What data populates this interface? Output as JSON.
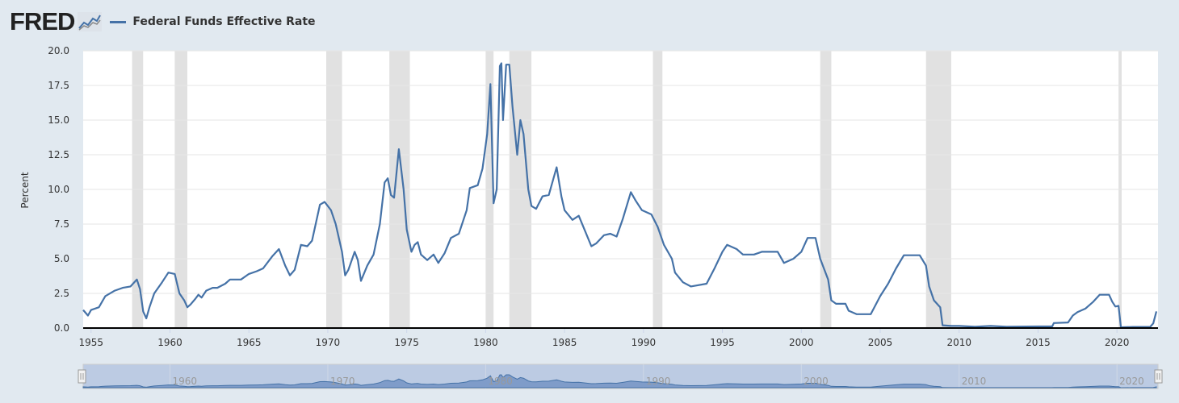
{
  "header": {
    "logo": "FRED",
    "logo_icon": "chart-line-icon"
  },
  "chart_data": {
    "type": "line",
    "title": "",
    "legend": [
      {
        "label": "Federal Funds Effective Rate",
        "color": "#4572a7"
      }
    ],
    "legend_placement": "top-left",
    "xlabel": "",
    "ylabel": "Percent",
    "xlim": [
      1954.5,
      2022.6
    ],
    "ylim": [
      0,
      20
    ],
    "yticks": [
      "0.0",
      "2.5",
      "5.0",
      "7.5",
      "10.0",
      "12.5",
      "15.0",
      "17.5",
      "20.0"
    ],
    "xticks": [
      "1955",
      "1960",
      "1965",
      "1970",
      "1975",
      "1980",
      "1985",
      "1990",
      "1995",
      "2000",
      "2005",
      "2010",
      "2015",
      "2020"
    ],
    "navigator_labels": [
      "1960",
      "1970",
      "1980",
      "1990",
      "2000",
      "2010",
      "2020"
    ],
    "recessions": [
      [
        1957.6,
        1958.3
      ],
      [
        1960.3,
        1961.1
      ],
      [
        1969.9,
        1970.9
      ],
      [
        1973.9,
        1975.2
      ],
      [
        1980.0,
        1980.5
      ],
      [
        1981.5,
        1982.9
      ],
      [
        1990.6,
        1991.2
      ],
      [
        2001.2,
        2001.9
      ],
      [
        2007.9,
        2009.5
      ],
      [
        2020.1,
        2020.3
      ]
    ],
    "series": [
      {
        "name": "Federal Funds Effective Rate",
        "color": "#4572a7",
        "points": [
          [
            1954.5,
            1.3
          ],
          [
            1954.8,
            0.9
          ],
          [
            1955.0,
            1.3
          ],
          [
            1955.5,
            1.5
          ],
          [
            1955.9,
            2.3
          ],
          [
            1956.5,
            2.7
          ],
          [
            1957.0,
            2.9
          ],
          [
            1957.5,
            3.0
          ],
          [
            1957.9,
            3.5
          ],
          [
            1958.1,
            2.8
          ],
          [
            1958.3,
            1.2
          ],
          [
            1958.5,
            0.7
          ],
          [
            1958.7,
            1.5
          ],
          [
            1959.0,
            2.5
          ],
          [
            1959.5,
            3.3
          ],
          [
            1959.9,
            4.0
          ],
          [
            1960.3,
            3.9
          ],
          [
            1960.6,
            2.5
          ],
          [
            1960.9,
            2.0
          ],
          [
            1961.1,
            1.5
          ],
          [
            1961.3,
            1.7
          ],
          [
            1961.6,
            2.1
          ],
          [
            1961.8,
            2.4
          ],
          [
            1962.0,
            2.2
          ],
          [
            1962.3,
            2.7
          ],
          [
            1962.7,
            2.9
          ],
          [
            1963.0,
            2.9
          ],
          [
            1963.5,
            3.2
          ],
          [
            1963.8,
            3.5
          ],
          [
            1964.5,
            3.5
          ],
          [
            1965.0,
            3.9
          ],
          [
            1965.5,
            4.1
          ],
          [
            1965.9,
            4.3
          ],
          [
            1966.5,
            5.2
          ],
          [
            1966.9,
            5.7
          ],
          [
            1967.3,
            4.5
          ],
          [
            1967.6,
            3.8
          ],
          [
            1967.9,
            4.2
          ],
          [
            1968.3,
            6.0
          ],
          [
            1968.7,
            5.9
          ],
          [
            1969.0,
            6.3
          ],
          [
            1969.5,
            8.9
          ],
          [
            1969.8,
            9.1
          ],
          [
            1970.2,
            8.5
          ],
          [
            1970.5,
            7.5
          ],
          [
            1970.9,
            5.5
          ],
          [
            1971.1,
            3.8
          ],
          [
            1971.3,
            4.2
          ],
          [
            1971.7,
            5.5
          ],
          [
            1971.9,
            4.9
          ],
          [
            1972.1,
            3.4
          ],
          [
            1972.5,
            4.5
          ],
          [
            1972.9,
            5.3
          ],
          [
            1973.3,
            7.5
          ],
          [
            1973.6,
            10.5
          ],
          [
            1973.8,
            10.8
          ],
          [
            1974.0,
            9.6
          ],
          [
            1974.2,
            9.4
          ],
          [
            1974.5,
            12.9
          ],
          [
            1974.8,
            10.0
          ],
          [
            1975.0,
            7.1
          ],
          [
            1975.3,
            5.5
          ],
          [
            1975.5,
            6.0
          ],
          [
            1975.7,
            6.2
          ],
          [
            1975.9,
            5.3
          ],
          [
            1976.3,
            4.9
          ],
          [
            1976.7,
            5.3
          ],
          [
            1977.0,
            4.7
          ],
          [
            1977.4,
            5.4
          ],
          [
            1977.8,
            6.5
          ],
          [
            1978.3,
            6.8
          ],
          [
            1978.8,
            8.5
          ],
          [
            1979.0,
            10.1
          ],
          [
            1979.5,
            10.3
          ],
          [
            1979.8,
            11.5
          ],
          [
            1980.1,
            14.0
          ],
          [
            1980.3,
            17.6
          ],
          [
            1980.5,
            9.0
          ],
          [
            1980.7,
            10.0
          ],
          [
            1980.9,
            18.9
          ],
          [
            1981.0,
            19.1
          ],
          [
            1981.1,
            15.0
          ],
          [
            1981.3,
            19.0
          ],
          [
            1981.5,
            19.0
          ],
          [
            1981.7,
            16.0
          ],
          [
            1982.0,
            12.5
          ],
          [
            1982.2,
            15.0
          ],
          [
            1982.4,
            14.0
          ],
          [
            1982.7,
            10.0
          ],
          [
            1982.9,
            8.8
          ],
          [
            1983.2,
            8.6
          ],
          [
            1983.6,
            9.5
          ],
          [
            1984.0,
            9.6
          ],
          [
            1984.5,
            11.6
          ],
          [
            1984.8,
            9.5
          ],
          [
            1985.0,
            8.5
          ],
          [
            1985.5,
            7.8
          ],
          [
            1985.9,
            8.1
          ],
          [
            1986.3,
            7.0
          ],
          [
            1986.7,
            5.9
          ],
          [
            1987.0,
            6.1
          ],
          [
            1987.5,
            6.7
          ],
          [
            1987.9,
            6.8
          ],
          [
            1988.3,
            6.6
          ],
          [
            1988.7,
            7.9
          ],
          [
            1989.2,
            9.8
          ],
          [
            1989.5,
            9.2
          ],
          [
            1989.9,
            8.5
          ],
          [
            1990.5,
            8.2
          ],
          [
            1990.9,
            7.3
          ],
          [
            1991.3,
            6.0
          ],
          [
            1991.8,
            5.0
          ],
          [
            1992.0,
            4.0
          ],
          [
            1992.5,
            3.3
          ],
          [
            1993.0,
            3.0
          ],
          [
            1994.0,
            3.2
          ],
          [
            1994.5,
            4.3
          ],
          [
            1995.0,
            5.5
          ],
          [
            1995.3,
            6.0
          ],
          [
            1995.9,
            5.7
          ],
          [
            1996.3,
            5.3
          ],
          [
            1997.0,
            5.3
          ],
          [
            1997.5,
            5.5
          ],
          [
            1998.5,
            5.5
          ],
          [
            1998.9,
            4.7
          ],
          [
            1999.5,
            5.0
          ],
          [
            2000.0,
            5.5
          ],
          [
            2000.4,
            6.5
          ],
          [
            2000.9,
            6.5
          ],
          [
            2001.2,
            5.0
          ],
          [
            2001.7,
            3.5
          ],
          [
            2001.9,
            2.0
          ],
          [
            2002.2,
            1.75
          ],
          [
            2002.8,
            1.75
          ],
          [
            2003.0,
            1.25
          ],
          [
            2003.5,
            1.0
          ],
          [
            2004.4,
            1.0
          ],
          [
            2005.0,
            2.3
          ],
          [
            2005.5,
            3.2
          ],
          [
            2006.0,
            4.3
          ],
          [
            2006.5,
            5.25
          ],
          [
            2007.5,
            5.25
          ],
          [
            2007.9,
            4.5
          ],
          [
            2008.1,
            3.0
          ],
          [
            2008.4,
            2.0
          ],
          [
            2008.8,
            1.5
          ],
          [
            2008.95,
            0.2
          ],
          [
            2009.5,
            0.15
          ],
          [
            2010.0,
            0.15
          ],
          [
            2011.0,
            0.1
          ],
          [
            2012.0,
            0.15
          ],
          [
            2013.0,
            0.1
          ],
          [
            2015.9,
            0.12
          ],
          [
            2016.0,
            0.36
          ],
          [
            2016.9,
            0.4
          ],
          [
            2017.2,
            0.9
          ],
          [
            2017.5,
            1.15
          ],
          [
            2018.0,
            1.4
          ],
          [
            2018.5,
            1.9
          ],
          [
            2018.9,
            2.4
          ],
          [
            2019.5,
            2.4
          ],
          [
            2019.7,
            1.9
          ],
          [
            2019.9,
            1.55
          ],
          [
            2020.1,
            1.6
          ],
          [
            2020.25,
            0.05
          ],
          [
            2021.0,
            0.08
          ],
          [
            2022.1,
            0.08
          ],
          [
            2022.3,
            0.33
          ],
          [
            2022.5,
            1.2
          ]
        ]
      }
    ]
  }
}
